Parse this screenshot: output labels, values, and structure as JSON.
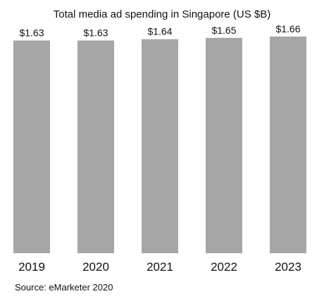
{
  "chart_data": {
    "type": "bar",
    "title": "Total media ad spending in Singapore (US $B)",
    "categories": [
      "2019",
      "2020",
      "2021",
      "2022",
      "2023"
    ],
    "values": [
      1.63,
      1.63,
      1.64,
      1.65,
      1.66
    ],
    "data_labels": [
      "$1.63",
      "$1.63",
      "$1.64",
      "$1.65",
      "$1.66"
    ],
    "xlabel": "",
    "ylabel": "",
    "ylim": [
      0,
      1.66
    ],
    "grid": false,
    "legend": "none",
    "bar_color": "#a6a6a6"
  },
  "source": "Source: eMarketer 2020"
}
